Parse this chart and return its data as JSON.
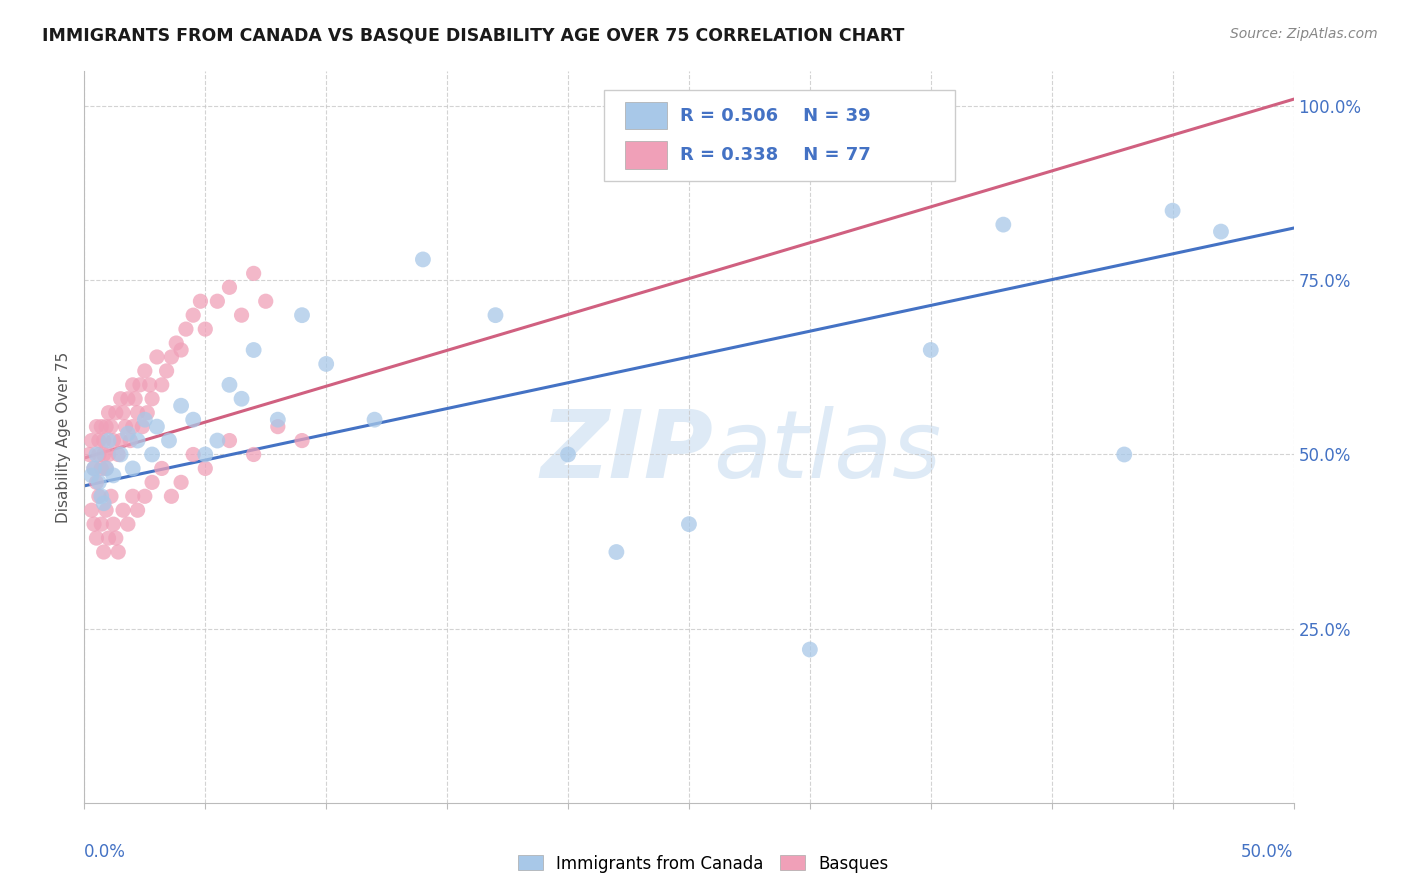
{
  "title": "IMMIGRANTS FROM CANADA VS BASQUE DISABILITY AGE OVER 75 CORRELATION CHART",
  "source": "Source: ZipAtlas.com",
  "ylabel_label": "Disability Age Over 75",
  "legend_blue_r": "R = 0.506",
  "legend_blue_n": "N = 39",
  "legend_pink_r": "R = 0.338",
  "legend_pink_n": "N = 77",
  "legend_blue_label": "Immigrants from Canada",
  "legend_pink_label": "Basques",
  "blue_color": "#a8c8e8",
  "pink_color": "#f0a0b8",
  "blue_line_color": "#4472c4",
  "pink_line_color": "#d06080",
  "axis_label_color": "#4472c4",
  "xmin": 0.0,
  "xmax": 0.5,
  "ymin": 0.0,
  "ymax": 1.05,
  "blue_line_x0": 0.0,
  "blue_line_y0": 0.455,
  "blue_line_x1": 0.5,
  "blue_line_y1": 0.825,
  "pink_line_x0": 0.0,
  "pink_line_y0": 0.495,
  "pink_line_x1": 0.5,
  "pink_line_y1": 1.01,
  "blue_x": [
    0.003,
    0.004,
    0.005,
    0.006,
    0.007,
    0.008,
    0.009,
    0.01,
    0.012,
    0.015,
    0.018,
    0.02,
    0.022,
    0.025,
    0.028,
    0.03,
    0.035,
    0.04,
    0.045,
    0.05,
    0.055,
    0.06,
    0.065,
    0.07,
    0.08,
    0.09,
    0.1,
    0.12,
    0.14,
    0.17,
    0.2,
    0.22,
    0.25,
    0.3,
    0.35,
    0.38,
    0.43,
    0.45,
    0.47
  ],
  "blue_y": [
    0.47,
    0.48,
    0.5,
    0.46,
    0.44,
    0.43,
    0.48,
    0.52,
    0.47,
    0.5,
    0.53,
    0.48,
    0.52,
    0.55,
    0.5,
    0.54,
    0.52,
    0.57,
    0.55,
    0.5,
    0.52,
    0.6,
    0.58,
    0.65,
    0.55,
    0.7,
    0.63,
    0.55,
    0.78,
    0.7,
    0.5,
    0.36,
    0.4,
    0.22,
    0.65,
    0.83,
    0.5,
    0.85,
    0.82
  ],
  "pink_x": [
    0.002,
    0.003,
    0.004,
    0.005,
    0.005,
    0.006,
    0.006,
    0.007,
    0.007,
    0.008,
    0.008,
    0.009,
    0.009,
    0.01,
    0.01,
    0.011,
    0.012,
    0.013,
    0.014,
    0.015,
    0.015,
    0.016,
    0.017,
    0.018,
    0.019,
    0.02,
    0.02,
    0.021,
    0.022,
    0.023,
    0.024,
    0.025,
    0.026,
    0.027,
    0.028,
    0.03,
    0.032,
    0.034,
    0.036,
    0.038,
    0.04,
    0.042,
    0.045,
    0.048,
    0.05,
    0.055,
    0.06,
    0.065,
    0.07,
    0.075,
    0.003,
    0.004,
    0.005,
    0.006,
    0.007,
    0.008,
    0.009,
    0.01,
    0.011,
    0.012,
    0.013,
    0.014,
    0.016,
    0.018,
    0.02,
    0.022,
    0.025,
    0.028,
    0.032,
    0.036,
    0.04,
    0.045,
    0.05,
    0.06,
    0.07,
    0.08,
    0.09
  ],
  "pink_y": [
    0.5,
    0.52,
    0.48,
    0.54,
    0.46,
    0.52,
    0.5,
    0.54,
    0.48,
    0.52,
    0.5,
    0.54,
    0.48,
    0.56,
    0.5,
    0.54,
    0.52,
    0.56,
    0.5,
    0.58,
    0.52,
    0.56,
    0.54,
    0.58,
    0.52,
    0.6,
    0.54,
    0.58,
    0.56,
    0.6,
    0.54,
    0.62,
    0.56,
    0.6,
    0.58,
    0.64,
    0.6,
    0.62,
    0.64,
    0.66,
    0.65,
    0.68,
    0.7,
    0.72,
    0.68,
    0.72,
    0.74,
    0.7,
    0.76,
    0.72,
    0.42,
    0.4,
    0.38,
    0.44,
    0.4,
    0.36,
    0.42,
    0.38,
    0.44,
    0.4,
    0.38,
    0.36,
    0.42,
    0.4,
    0.44,
    0.42,
    0.44,
    0.46,
    0.48,
    0.44,
    0.46,
    0.5,
    0.48,
    0.52,
    0.5,
    0.54,
    0.52
  ]
}
